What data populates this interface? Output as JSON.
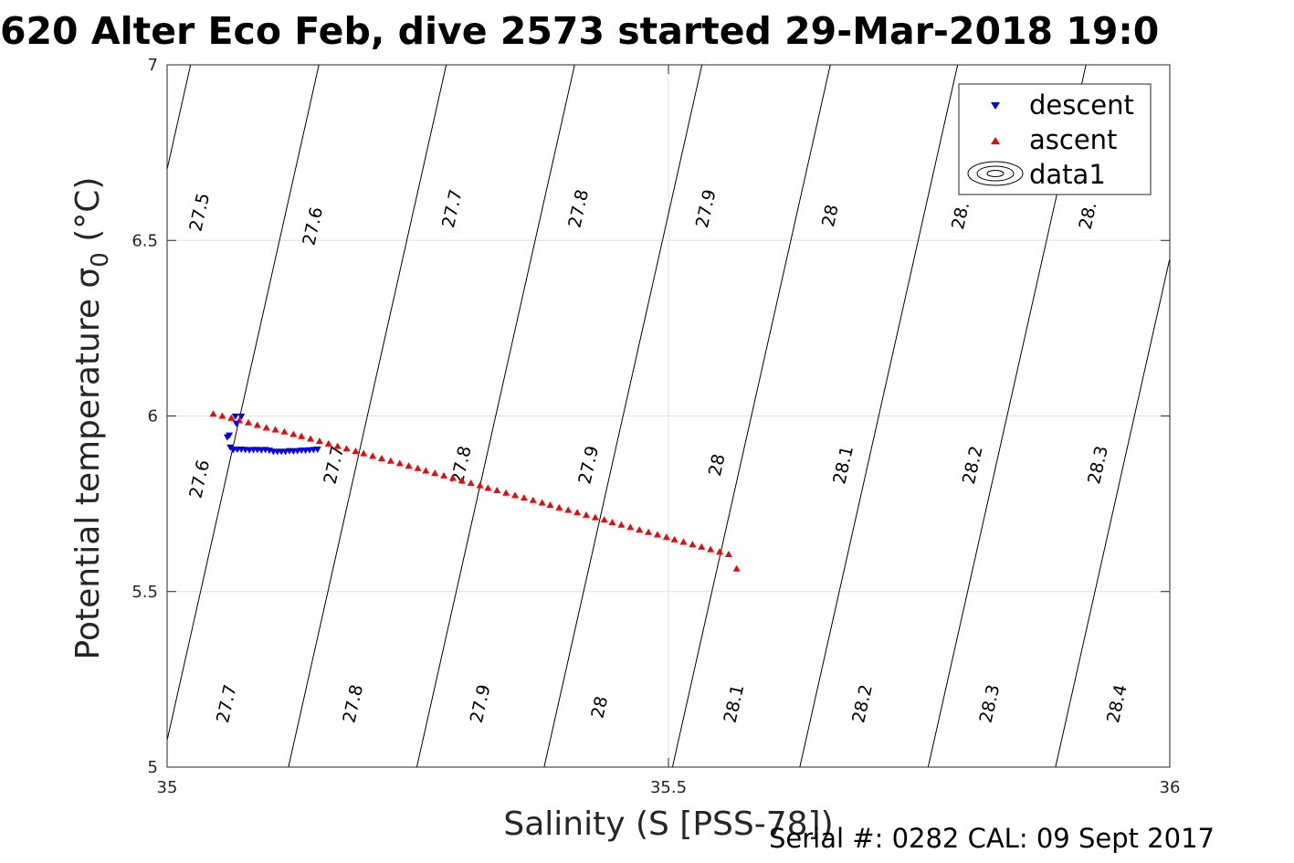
{
  "chart_data": {
    "type": "scatter",
    "title": "620 Alter Eco Feb, dive 2573 started 29-Mar-2018 19:0",
    "xlabel": "Salinity (S [PSS-78])",
    "ylabel": "Potential temperature σ",
    "ylabel_sub": "0",
    "ylabel_unit": " (°C)",
    "xlim": [
      35,
      36
    ],
    "ylim": [
      5,
      7
    ],
    "xticks": [
      35,
      35.5,
      36
    ],
    "xtick_labels": [
      "35",
      "35.5",
      "36"
    ],
    "yticks": [
      5,
      5.5,
      6,
      6.5,
      7
    ],
    "ytick_labels": [
      "5",
      "5.5",
      "6",
      "6.5",
      "7"
    ],
    "grid": true,
    "legend_position": "top-right",
    "series": [
      {
        "name": "descent",
        "marker": "triangle-down",
        "color": "#0000ff",
        "x": [
          35.068,
          35.074,
          35.069,
          35.062,
          35.06,
          35.063,
          35.066,
          35.07,
          35.074,
          35.078,
          35.082,
          35.086,
          35.09,
          35.094,
          35.098,
          35.102,
          35.106,
          35.11,
          35.114,
          35.118,
          35.122,
          35.126,
          35.13,
          35.134,
          35.138,
          35.142,
          35.146,
          35.15
        ],
        "y": [
          5.999,
          5.999,
          5.979,
          5.945,
          5.94,
          5.911,
          5.904,
          5.905,
          5.905,
          5.904,
          5.903,
          5.904,
          5.904,
          5.903,
          5.904,
          5.902,
          5.899,
          5.899,
          5.899,
          5.899,
          5.901,
          5.9,
          5.901,
          5.902,
          5.902,
          5.903,
          5.904,
          5.905
        ]
      },
      {
        "name": "ascent",
        "marker": "triangle-up",
        "color": "#ff0000",
        "x": [
          35.046,
          35.055,
          35.064,
          35.072,
          35.081,
          35.09,
          35.099,
          35.108,
          35.117,
          35.126,
          35.134,
          35.143,
          35.152,
          35.161,
          35.17,
          35.179,
          35.188,
          35.196,
          35.205,
          35.214,
          35.223,
          35.232,
          35.241,
          35.25,
          35.258,
          35.267,
          35.276,
          35.285,
          35.294,
          35.303,
          35.312,
          35.32,
          35.329,
          35.338,
          35.347,
          35.356,
          35.365,
          35.374,
          35.382,
          35.391,
          35.4,
          35.409,
          35.418,
          35.427,
          35.436,
          35.444,
          35.453,
          35.462,
          35.471,
          35.48,
          35.489,
          35.498,
          35.506,
          35.515,
          35.524,
          35.533,
          35.542,
          35.551,
          35.56,
          35.568
        ],
        "y": [
          6.006,
          6.0,
          5.994,
          5.987,
          5.981,
          5.974,
          5.967,
          5.961,
          5.955,
          5.948,
          5.942,
          5.935,
          5.928,
          5.921,
          5.914,
          5.907,
          5.9,
          5.893,
          5.886,
          5.879,
          5.872,
          5.865,
          5.858,
          5.851,
          5.844,
          5.837,
          5.83,
          5.823,
          5.816,
          5.809,
          5.802,
          5.795,
          5.788,
          5.781,
          5.774,
          5.767,
          5.76,
          5.753,
          5.746,
          5.739,
          5.732,
          5.725,
          5.718,
          5.711,
          5.704,
          5.697,
          5.69,
          5.683,
          5.676,
          5.669,
          5.662,
          5.655,
          5.648,
          5.641,
          5.634,
          5.627,
          5.62,
          5.613,
          5.606,
          5.565
        ]
      },
      {
        "name": "data1",
        "marker": "contour",
        "color": "#000000",
        "contours": [
          {
            "level": "27.5",
            "x_at_y5": 34.866,
            "slope_dS_dT": 0.0787
          },
          {
            "level": "27.6",
            "x_at_y5": 34.994,
            "slope_dS_dT": 0.0787
          },
          {
            "level": "27.7",
            "x_at_y5": 35.121,
            "slope_dS_dT": 0.0787
          },
          {
            "level": "27.8",
            "x_at_y5": 35.249,
            "slope_dS_dT": 0.0787
          },
          {
            "level": "27.9",
            "x_at_y5": 35.376,
            "slope_dS_dT": 0.0787
          },
          {
            "level": "28",
            "x_at_y5": 35.504,
            "slope_dS_dT": 0.0787
          },
          {
            "level": "28.1",
            "x_at_y5": 35.631,
            "slope_dS_dT": 0.0787
          },
          {
            "level": "28.2",
            "x_at_y5": 35.759,
            "slope_dS_dT": 0.0787
          },
          {
            "level": "28.3",
            "x_at_y5": 35.886,
            "slope_dS_dT": 0.0787
          },
          {
            "level": "28.4",
            "x_at_y5": 36.014,
            "slope_dS_dT": 0.0787
          }
        ],
        "contour_labels": [
          {
            "text": "27.5",
            "x": 35.033,
            "y": 6.58
          },
          {
            "text": "27.6",
            "x": 35.146,
            "y": 6.54
          },
          {
            "text": "27.7",
            "x": 35.285,
            "y": 6.59
          },
          {
            "text": "27.8",
            "x": 35.411,
            "y": 6.59
          },
          {
            "text": "27.9",
            "x": 35.538,
            "y": 6.59
          },
          {
            "text": "28",
            "x": 35.662,
            "y": 6.57
          },
          {
            "text": "28.",
            "x": 35.792,
            "y": 6.57
          },
          {
            "text": "28.",
            "x": 35.919,
            "y": 6.57
          },
          {
            "text": "27.6",
            "x": 35.033,
            "y": 5.82
          },
          {
            "text": "27.7",
            "x": 35.167,
            "y": 5.86
          },
          {
            "text": "27.8",
            "x": 35.294,
            "y": 5.86
          },
          {
            "text": "27.9",
            "x": 35.421,
            "y": 5.86
          },
          {
            "text": "28",
            "x": 35.549,
            "y": 5.86
          },
          {
            "text": "28.1",
            "x": 35.675,
            "y": 5.86
          },
          {
            "text": "28.2",
            "x": 35.804,
            "y": 5.86
          },
          {
            "text": "28.3",
            "x": 35.929,
            "y": 5.86
          },
          {
            "text": "27.7",
            "x": 35.06,
            "y": 5.18
          },
          {
            "text": "27.8",
            "x": 35.186,
            "y": 5.18
          },
          {
            "text": "27.9",
            "x": 35.313,
            "y": 5.18
          },
          {
            "text": "28",
            "x": 35.432,
            "y": 5.17
          },
          {
            "text": "28.1",
            "x": 35.566,
            "y": 5.18
          },
          {
            "text": "28.2",
            "x": 35.694,
            "y": 5.18
          },
          {
            "text": "28.3",
            "x": 35.821,
            "y": 5.18
          },
          {
            "text": "28.4",
            "x": 35.948,
            "y": 5.18
          }
        ]
      }
    ],
    "legend": [
      "descent",
      "ascent",
      "data1"
    ]
  },
  "footer": {
    "serial_text": "Serial #: 0282  CAL: 09 Sept 2017"
  }
}
